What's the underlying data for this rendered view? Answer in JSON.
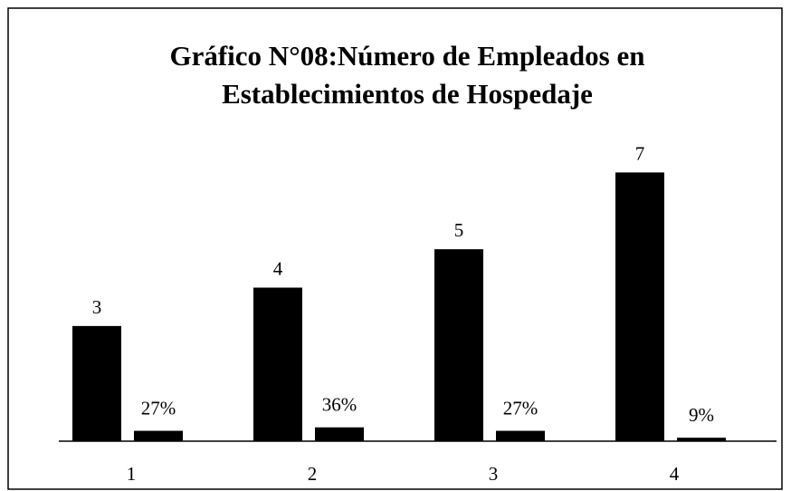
{
  "chart_data": {
    "type": "bar",
    "title": [
      "Gráfico N°08:Número de Empleados en",
      "Establecimientos de Hospedaje"
    ],
    "categories": [
      "1",
      "2",
      "3",
      "4"
    ],
    "series": [
      {
        "color": "#000000",
        "values": [
          3,
          4,
          5,
          7
        ]
      },
      {
        "color": "#000000",
        "axis": "y2",
        "values": [
          27,
          36,
          27,
          9
        ],
        "value_labels": [
          "27%",
          "36%",
          "27%",
          "9%"
        ]
      }
    ],
    "ylim": [
      0,
      8
    ],
    "y2lim": [
      0,
      800
    ]
  }
}
